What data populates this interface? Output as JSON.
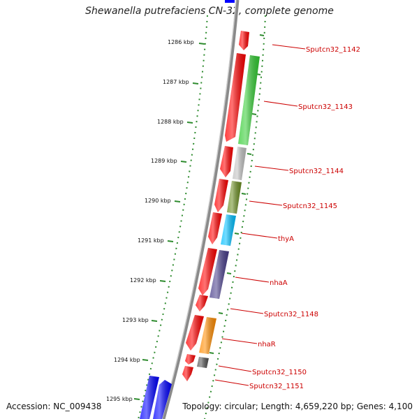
{
  "title": "Shewanella putrefaciens CN-32, complete genome",
  "accession": "Accession: NC_009438",
  "topology": "Topology: circular; Length: 4,659,220 bp; Genes: 4,100",
  "colors": {
    "backbone": "#8a8a8a",
    "tick": "#2e8b2e",
    "label": "#cc0000",
    "leader": "#cc0000",
    "top_partial_gene": "#0000ff"
  },
  "scale_labels": [
    "1286 kbp",
    "1287 kbp",
    "1288 kbp",
    "1289 kbp",
    "1290 kbp",
    "1291 kbp",
    "1292 kbp",
    "1293 kbp",
    "1294 kbp",
    "1295 kbp"
  ],
  "genes": [
    {
      "name": "Sputcn32_1142",
      "color": "#ff0000",
      "strand": "minus"
    },
    {
      "name": "Sputcn32_1143",
      "color": "#33cc33",
      "strand": "plus"
    },
    {
      "name": "Sputcn32_1144",
      "color": "#c0c0c0",
      "strand": "plus"
    },
    {
      "name": "Sputcn32_1145",
      "color": "#6b8e23",
      "strand": "plus"
    },
    {
      "name": "thyA",
      "color": "#00bfff",
      "strand": "plus"
    },
    {
      "name": "nhaA",
      "color": "#483d8b",
      "strand": "plus"
    },
    {
      "name": "Sputcn32_1148",
      "color": "#ff0000",
      "strand": "minus"
    },
    {
      "name": "nhaR",
      "color": "#ff8c00",
      "strand": "plus"
    },
    {
      "name": "Sputcn32_1150",
      "color": "#555555",
      "strand": "plus"
    },
    {
      "name": "Sputcn32_1151",
      "color": "#ff0000",
      "strand": "minus"
    }
  ],
  "minus_strand_red_color": "#ff0000",
  "bottom_partial_genes_color": "#0000ff"
}
